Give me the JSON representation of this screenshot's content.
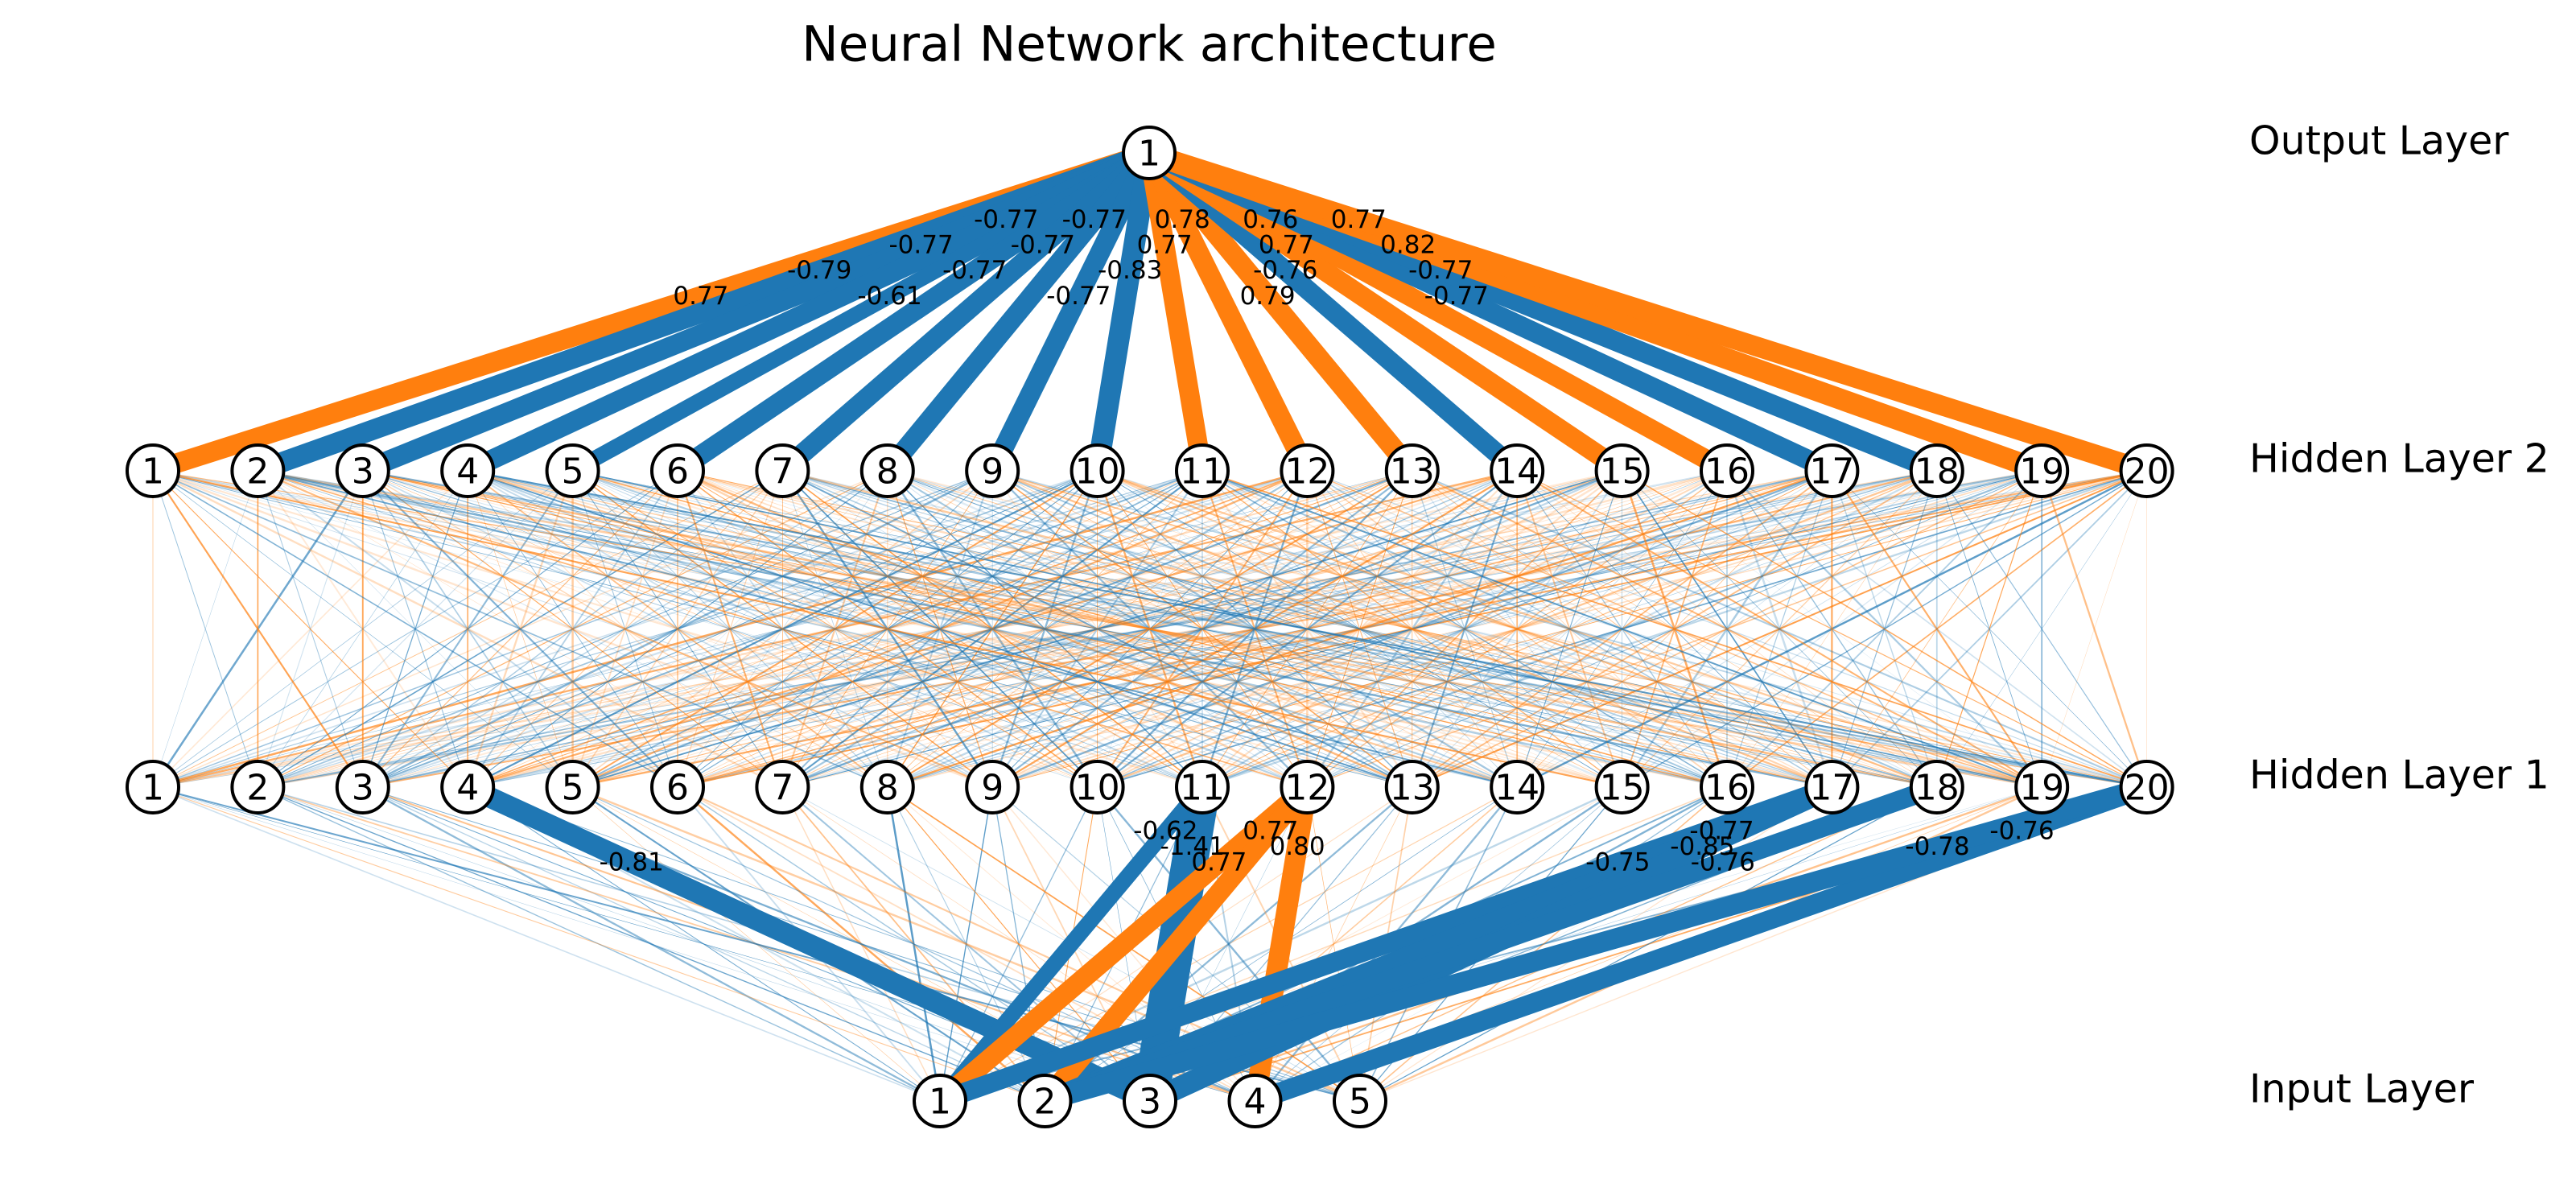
{
  "title": "Neural Network architecture",
  "colors": {
    "positive": "#ff7f0e",
    "negative": "#1f77b4",
    "node_stroke": "#000000",
    "node_fill": "#ffffff"
  },
  "layers": [
    {
      "key": "input",
      "label": "Input Layer",
      "nodes": [
        "1",
        "2",
        "3",
        "4",
        "5"
      ]
    },
    {
      "key": "hidden1",
      "label": "Hidden Layer 1",
      "nodes": [
        "1",
        "2",
        "3",
        "4",
        "5",
        "6",
        "7",
        "8",
        "9",
        "10",
        "11",
        "12",
        "13",
        "14",
        "15",
        "16",
        "17",
        "18",
        "19",
        "20"
      ]
    },
    {
      "key": "hidden2",
      "label": "Hidden Layer 2",
      "nodes": [
        "1",
        "2",
        "3",
        "4",
        "5",
        "6",
        "7",
        "8",
        "9",
        "10",
        "11",
        "12",
        "13",
        "14",
        "15",
        "16",
        "17",
        "18",
        "19",
        "20"
      ]
    },
    {
      "key": "output",
      "label": "Output Layer",
      "nodes": [
        "1"
      ]
    }
  ],
  "labeled_edges": [
    {
      "from_layer": 2,
      "from": 1,
      "to_layer": 3,
      "to": 1,
      "weight": 0.77,
      "label": "0.77"
    },
    {
      "from_layer": 2,
      "from": 2,
      "to_layer": 3,
      "to": 1,
      "weight": -0.79,
      "label": "-0.79"
    },
    {
      "from_layer": 2,
      "from": 3,
      "to_layer": 3,
      "to": 1,
      "weight": -0.77,
      "label": "-0.77"
    },
    {
      "from_layer": 2,
      "from": 4,
      "to_layer": 3,
      "to": 1,
      "weight": -0.77,
      "label": "-0.77"
    },
    {
      "from_layer": 2,
      "from": 5,
      "to_layer": 3,
      "to": 1,
      "weight": -0.61,
      "label": "-0.61"
    },
    {
      "from_layer": 2,
      "from": 6,
      "to_layer": 3,
      "to": 1,
      "weight": -0.77,
      "label": "-0.77"
    },
    {
      "from_layer": 2,
      "from": 7,
      "to_layer": 3,
      "to": 1,
      "weight": -0.77,
      "label": "-0.77"
    },
    {
      "from_layer": 2,
      "from": 8,
      "to_layer": 3,
      "to": 1,
      "weight": -0.77,
      "label": "-0.77"
    },
    {
      "from_layer": 2,
      "from": 9,
      "to_layer": 3,
      "to": 1,
      "weight": -0.77,
      "label": "-0.77"
    },
    {
      "from_layer": 2,
      "from": 10,
      "to_layer": 3,
      "to": 1,
      "weight": -0.83,
      "label": "-0.83"
    },
    {
      "from_layer": 2,
      "from": 11,
      "to_layer": 3,
      "to": 1,
      "weight": 0.77,
      "label": "0.77"
    },
    {
      "from_layer": 2,
      "from": 12,
      "to_layer": 3,
      "to": 1,
      "weight": 0.78,
      "label": "0.78"
    },
    {
      "from_layer": 2,
      "from": 13,
      "to_layer": 3,
      "to": 1,
      "weight": 0.79,
      "label": "0.79"
    },
    {
      "from_layer": 2,
      "from": 14,
      "to_layer": 3,
      "to": 1,
      "weight": -0.76,
      "label": "-0.76"
    },
    {
      "from_layer": 2,
      "from": 15,
      "to_layer": 3,
      "to": 1,
      "weight": 0.77,
      "label": "0.77"
    },
    {
      "from_layer": 2,
      "from": 16,
      "to_layer": 3,
      "to": 1,
      "weight": 0.76,
      "label": "0.76"
    },
    {
      "from_layer": 2,
      "from": 17,
      "to_layer": 3,
      "to": 1,
      "weight": -0.77,
      "label": "-0.77"
    },
    {
      "from_layer": 2,
      "from": 18,
      "to_layer": 3,
      "to": 1,
      "weight": -0.77,
      "label": "-0.77"
    },
    {
      "from_layer": 2,
      "from": 19,
      "to_layer": 3,
      "to": 1,
      "weight": 0.82,
      "label": "0.82"
    },
    {
      "from_layer": 2,
      "from": 20,
      "to_layer": 3,
      "to": 1,
      "weight": 0.77,
      "label": "0.77"
    },
    {
      "from_layer": 1,
      "from": 4,
      "to_layer": 0,
      "to": 3,
      "weight": -0.81,
      "label": "-0.81"
    },
    {
      "from_layer": 1,
      "from": 11,
      "to_layer": 0,
      "to": 1,
      "weight": -0.62,
      "label": "-0.62"
    },
    {
      "from_layer": 1,
      "from": 11,
      "to_layer": 0,
      "to": 3,
      "weight": -1.41,
      "label": "-1.41"
    },
    {
      "from_layer": 1,
      "from": 12,
      "to_layer": 0,
      "to": 1,
      "weight": 0.77,
      "label": "0.77"
    },
    {
      "from_layer": 1,
      "from": 12,
      "to_layer": 0,
      "to": 2,
      "weight": 0.77,
      "label": "0.77"
    },
    {
      "from_layer": 1,
      "from": 12,
      "to_layer": 0,
      "to": 4,
      "weight": 0.8,
      "label": "0.80"
    },
    {
      "from_layer": 1,
      "from": 17,
      "to_layer": 0,
      "to": 1,
      "weight": -0.75,
      "label": "-0.75"
    },
    {
      "from_layer": 1,
      "from": 17,
      "to_layer": 0,
      "to": 2,
      "weight": -0.77,
      "label": "-0.77"
    },
    {
      "from_layer": 1,
      "from": 17,
      "to_layer": 0,
      "to": 3,
      "weight": -0.85,
      "label": "-0.85"
    },
    {
      "from_layer": 1,
      "from": 18,
      "to_layer": 0,
      "to": 2,
      "weight": -0.76,
      "label": "-0.76"
    },
    {
      "from_layer": 1,
      "from": 20,
      "to_layer": 0,
      "to": 4,
      "weight": -0.76,
      "label": "-0.76"
    },
    {
      "from_layer": 1,
      "from": 20,
      "to_layer": 0,
      "to": 2,
      "weight": -0.78,
      "label": "-0.78"
    }
  ]
}
